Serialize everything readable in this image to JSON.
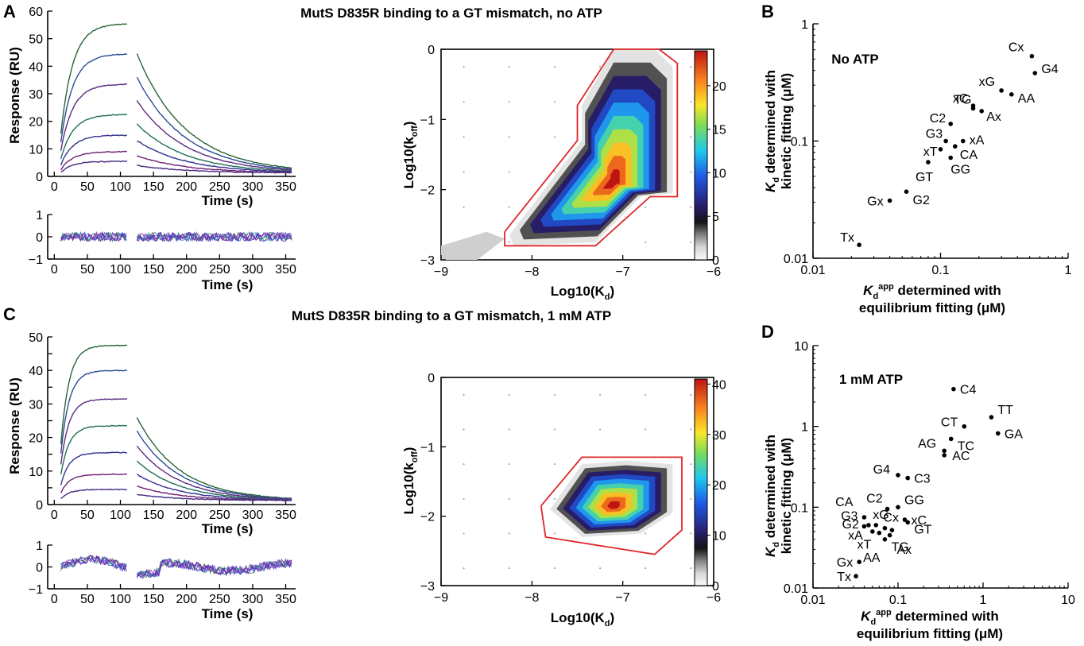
{
  "figure": {
    "panels": [
      {
        "letter": "A",
        "title": "MutS D835R binding to a GT mismatch, no ATP",
        "sensorgram": {
          "ylabel": "Response (RU)",
          "xlabel": "Time (s)",
          "ymax": 60
        },
        "residual_xlabel": "Time (s)",
        "contour": {
          "xlabel_main": "Log10(K",
          "xlabel_sub": "d",
          "ylabel_main": "Log10(k",
          "ylabel_sub": "off",
          "colorbar_max": 20
        }
      },
      {
        "letter": "B",
        "subtitle": "No ATP",
        "ylabel_line1": "determined with",
        "ylabel_line2": "kinetic fitting (μM)",
        "xlabel_line1": "determined with",
        "xlabel_line2": "equilibrium fitting (μM)"
      },
      {
        "letter": "C",
        "title": "MutS D835R binding to a GT mismatch, 1 mM ATP",
        "sensorgram": {
          "ylabel": "Response (RU)",
          "xlabel": "Time (s)",
          "ymax": 50
        },
        "residual_xlabel": "Time (s)",
        "contour": {
          "xlabel_main": "Log10(K",
          "xlabel_sub": "d",
          "ylabel_main": "Log10(k",
          "ylabel_sub": "off",
          "colorbar_max": 40
        }
      },
      {
        "letter": "D",
        "subtitle": "1 mM ATP",
        "ylabel_line1": "determined with",
        "ylabel_line2": "kinetic fitting (μM)",
        "xlabel_line1": "determined with",
        "xlabel_line2": "equilibrium fitting (μM)"
      }
    ]
  },
  "chart_data": [
    {
      "id": "A-sensorgram",
      "type": "line",
      "xlabel": "Time (s)",
      "ylabel": "Response (RU)",
      "xlim": [
        -10,
        365
      ],
      "ylim": [
        0,
        60
      ],
      "xticks": [
        0,
        50,
        100,
        150,
        200,
        250,
        300,
        350
      ],
      "yticks": [
        0,
        10,
        20,
        30,
        40,
        50,
        60
      ],
      "association": {
        "t_start": 10,
        "t_end": 110,
        "k": 0.055,
        "plateaus": [
          55.5,
          44.5,
          33.5,
          22.5,
          15,
          9,
          5.5
        ]
      },
      "dissociation": {
        "t_start": 125,
        "t_end": 360,
        "k": 0.0135,
        "starts": [
          44.5,
          36,
          27.5,
          19,
          13,
          7.5,
          4
        ]
      }
    },
    {
      "id": "A-residuals",
      "type": "line",
      "xlabel": "Time (s)",
      "xlim": [
        -10,
        365
      ],
      "ylim": [
        -1,
        1
      ],
      "xticks": [
        0,
        50,
        100,
        150,
        200,
        250,
        300,
        350
      ],
      "yticks": [
        -1,
        0,
        1
      ]
    },
    {
      "id": "A-contour",
      "type": "heatmap",
      "xlabel": "Log10(Kd)",
      "ylabel": "Log10(koff)",
      "xlim": [
        -9,
        -6
      ],
      "ylim": [
        -3,
        0
      ],
      "xticks": [
        -9,
        -8,
        -7,
        -6
      ],
      "yticks": [
        -3,
        -2,
        -1,
        0
      ],
      "colorbar": {
        "min": 0,
        "max": 24,
        "ticks": [
          0,
          5,
          10,
          15,
          20
        ]
      },
      "peak": {
        "x": -7.1,
        "y": -1.9
      },
      "boundary": [
        [
          -8.3,
          -2.6
        ],
        [
          -8.3,
          -2.8
        ],
        [
          -7.3,
          -2.8
        ],
        [
          -6.7,
          -2.1
        ],
        [
          -6.4,
          -2.1
        ],
        [
          -6.4,
          -0.2
        ],
        [
          -6.6,
          0.0
        ],
        [
          -7.1,
          0.0
        ],
        [
          -7.5,
          -0.8
        ],
        [
          -7.5,
          -1.3
        ],
        [
          -8.3,
          -2.6
        ]
      ]
    },
    {
      "id": "B-scatter",
      "type": "scatter",
      "title": "No ATP",
      "xscale": "log",
      "yscale": "log",
      "xlim": [
        0.01,
        1
      ],
      "ylim": [
        0.01,
        1
      ],
      "xticks": [
        0.01,
        0.1,
        1
      ],
      "yticks": [
        0.01,
        0.1,
        1
      ],
      "points": [
        {
          "label": "Cx",
          "x": 0.52,
          "y": 0.53
        },
        {
          "label": "G4",
          "x": 0.55,
          "y": 0.38
        },
        {
          "label": "xG",
          "x": 0.3,
          "y": 0.27
        },
        {
          "label": "AA",
          "x": 0.36,
          "y": 0.25
        },
        {
          "label": "xC",
          "x": 0.18,
          "y": 0.2
        },
        {
          "label": "TG",
          "x": 0.18,
          "y": 0.19
        },
        {
          "label": "Ax",
          "x": 0.21,
          "y": 0.18
        },
        {
          "label": "C2",
          "x": 0.12,
          "y": 0.14
        },
        {
          "label": "G3",
          "x": 0.11,
          "y": 0.1
        },
        {
          "label": "xA",
          "x": 0.15,
          "y": 0.1
        },
        {
          "label": "xT",
          "x": 0.1,
          "y": 0.085
        },
        {
          "label": "CA",
          "x": 0.13,
          "y": 0.09
        },
        {
          "label": "GT",
          "x": 0.08,
          "y": 0.066
        },
        {
          "label": "GG",
          "x": 0.12,
          "y": 0.072
        },
        {
          "label": "Gx",
          "x": 0.04,
          "y": 0.031
        },
        {
          "label": "G2",
          "x": 0.054,
          "y": 0.037
        },
        {
          "label": "Tx",
          "x": 0.023,
          "y": 0.013
        }
      ]
    },
    {
      "id": "C-sensorgram",
      "type": "line",
      "xlabel": "Time (s)",
      "ylabel": "Response (RU)",
      "xlim": [
        -10,
        365
      ],
      "ylim": [
        0,
        50
      ],
      "xticks": [
        0,
        50,
        100,
        150,
        200,
        250,
        300,
        350
      ],
      "yticks": [
        0,
        5,
        10,
        15,
        20,
        25,
        30,
        35,
        40,
        45,
        50
      ],
      "association": {
        "t_start": 10,
        "t_end": 110,
        "k": 0.08,
        "plateaus": [
          47.5,
          40,
          31.5,
          23.5,
          15.5,
          9,
          4.5
        ]
      },
      "dissociation": {
        "t_start": 125,
        "t_end": 360,
        "k": 0.0155,
        "starts": [
          26,
          22,
          17.5,
          13,
          9,
          5.5,
          3
        ]
      }
    },
    {
      "id": "C-residuals",
      "type": "line",
      "xlabel": "Time (s)",
      "xlim": [
        -10,
        365
      ],
      "ylim": [
        -1,
        1
      ],
      "xticks": [
        0,
        50,
        100,
        150,
        200,
        250,
        300,
        350
      ],
      "yticks": [
        -1,
        0,
        1
      ]
    },
    {
      "id": "C-contour",
      "type": "heatmap",
      "xlabel": "Log10(Kd)",
      "ylabel": "Log10(koff)",
      "xlim": [
        -9,
        -6
      ],
      "ylim": [
        -3,
        0
      ],
      "xticks": [
        -9,
        -8,
        -7,
        -6
      ],
      "yticks": [
        -3,
        -2,
        -1,
        0
      ],
      "colorbar": {
        "min": 0,
        "max": 41,
        "ticks": [
          0,
          10,
          20,
          30,
          40
        ]
      },
      "peak": {
        "x": -7.1,
        "y": -1.85
      },
      "boundary": [
        [
          -7.9,
          -1.85
        ],
        [
          -7.85,
          -2.3
        ],
        [
          -6.65,
          -2.55
        ],
        [
          -6.35,
          -2.2
        ],
        [
          -6.35,
          -1.15
        ],
        [
          -7.45,
          -1.15
        ],
        [
          -7.9,
          -1.85
        ]
      ]
    },
    {
      "id": "D-scatter",
      "type": "scatter",
      "title": "1 mM ATP",
      "xscale": "log",
      "yscale": "log",
      "xlim": [
        0.01,
        10
      ],
      "ylim": [
        0.01,
        10
      ],
      "xticks": [
        0.01,
        0.1,
        1,
        10
      ],
      "yticks": [
        0.01,
        0.1,
        1,
        10
      ],
      "points": [
        {
          "label": "C4",
          "x": 0.45,
          "y": 2.9
        },
        {
          "label": "TT",
          "x": 1.25,
          "y": 1.3
        },
        {
          "label": "CT",
          "x": 0.6,
          "y": 1.0
        },
        {
          "label": "TC",
          "x": 0.42,
          "y": 0.7
        },
        {
          "label": "GA",
          "x": 1.5,
          "y": 0.82
        },
        {
          "label": "AG",
          "x": 0.35,
          "y": 0.5
        },
        {
          "label": "AC",
          "x": 0.35,
          "y": 0.44
        },
        {
          "label": "G4",
          "x": 0.1,
          "y": 0.25
        },
        {
          "label": "C3",
          "x": 0.13,
          "y": 0.23
        },
        {
          "label": "CA",
          "x": 0.04,
          "y": 0.075
        },
        {
          "label": "C2",
          "x": 0.075,
          "y": 0.095
        },
        {
          "label": "GG",
          "x": 0.1,
          "y": 0.1
        },
        {
          "label": "G3",
          "x": 0.04,
          "y": 0.058
        },
        {
          "label": "xG",
          "x": 0.055,
          "y": 0.06
        },
        {
          "label": "Cx",
          "x": 0.07,
          "y": 0.055
        },
        {
          "label": "xC",
          "x": 0.12,
          "y": 0.07
        },
        {
          "label": "G2",
          "x": 0.045,
          "y": 0.06
        },
        {
          "label": "GT",
          "x": 0.13,
          "y": 0.065
        },
        {
          "label": "xA",
          "x": 0.05,
          "y": 0.05
        },
        {
          "label": "TG",
          "x": 0.08,
          "y": 0.045
        },
        {
          "label": "xT",
          "x": 0.06,
          "y": 0.048
        },
        {
          "label": "AA",
          "x": 0.07,
          "y": 0.04
        },
        {
          "label": "Ax",
          "x": 0.085,
          "y": 0.052
        },
        {
          "label": "Gx",
          "x": 0.035,
          "y": 0.021
        },
        {
          "label": "Tx",
          "x": 0.032,
          "y": 0.014
        }
      ]
    }
  ]
}
